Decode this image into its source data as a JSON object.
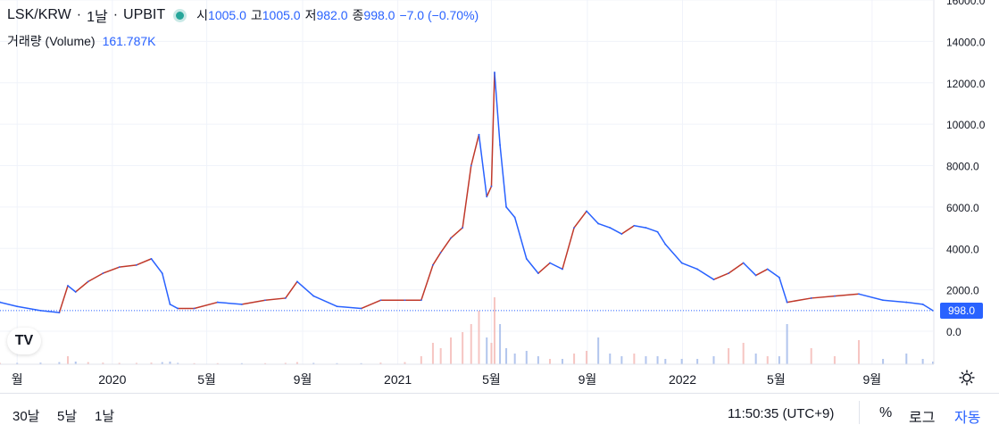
{
  "legend": {
    "symbol": "LSK/KRW",
    "interval": "1날",
    "exchange": "UPBIT",
    "open_label": "시",
    "open": "1005.0",
    "high_label": "고",
    "high": "1005.0",
    "low_label": "저",
    "low": "982.0",
    "close_label": "종",
    "close": "998.0",
    "change": "−7.0 (−0.70%)"
  },
  "volume_legend": {
    "label": "거래량 (Volume)",
    "value": "161.787K"
  },
  "last_price_label": "998.0",
  "colors": {
    "up": "#26a69a",
    "down": "#ef5350",
    "line_up": "#c0392b",
    "line_down": "#2962ff",
    "accent": "#2962ff"
  },
  "icons": {
    "logo": "tradingview-logo-icon",
    "settings": "gear-icon"
  },
  "bottom_bar": {
    "ranges": [
      "30날",
      "5날",
      "1날"
    ],
    "time": "11:50:35 (UTC+9)",
    "percent": "%",
    "log": "로그",
    "auto": "자동"
  },
  "chart_data": {
    "type": "line",
    "title": "",
    "xlabel": "",
    "ylabel": "",
    "y_axis_position": "right",
    "ylim": [
      -300,
      16000
    ],
    "y_ticks": [
      0,
      2000,
      4000,
      6000,
      8000,
      10000,
      12000,
      14000,
      16000
    ],
    "y_tick_labels": [
      "0.0",
      "2000.0",
      "4000.0",
      "6000.0",
      "8000.0",
      "10000.0",
      "12000.0",
      "14000.0",
      "16000.0"
    ],
    "xlim": [
      "2019-08-10",
      "2022-11-18"
    ],
    "x_ticks": [
      {
        "date": "2019-09-01",
        "label": "월"
      },
      {
        "date": "2020-01-01",
        "label": "2020"
      },
      {
        "date": "2020-05-01",
        "label": "5월"
      },
      {
        "date": "2020-09-01",
        "label": "9월"
      },
      {
        "date": "2021-01-01",
        "label": "2021"
      },
      {
        "date": "2021-05-01",
        "label": "5월"
      },
      {
        "date": "2021-09-01",
        "label": "9월"
      },
      {
        "date": "2022-01-01",
        "label": "2022"
      },
      {
        "date": "2022-05-01",
        "label": "5월"
      },
      {
        "date": "2022-09-01",
        "label": "9월"
      }
    ],
    "grid": true,
    "last_value_line": 998,
    "series": [
      {
        "name": "",
        "x": [
          "2019-08-10",
          "2019-09-01",
          "2019-10-01",
          "2019-10-25",
          "2019-11-05",
          "2019-11-15",
          "2019-12-01",
          "2019-12-20",
          "2020-01-10",
          "2020-02-01",
          "2020-02-20",
          "2020-03-05",
          "2020-03-15",
          "2020-03-25",
          "2020-04-15",
          "2020-05-15",
          "2020-06-15",
          "2020-07-15",
          "2020-08-10",
          "2020-08-25",
          "2020-09-15",
          "2020-10-15",
          "2020-11-15",
          "2020-12-10",
          "2021-01-10",
          "2021-01-31",
          "2021-02-15",
          "2021-02-25",
          "2021-03-10",
          "2021-03-25",
          "2021-04-05",
          "2021-04-15",
          "2021-04-25",
          "2021-05-01",
          "2021-05-05",
          "2021-05-12",
          "2021-05-20",
          "2021-05-31",
          "2021-06-15",
          "2021-06-30",
          "2021-07-15",
          "2021-07-31",
          "2021-08-15",
          "2021-08-31",
          "2021-09-15",
          "2021-09-30",
          "2021-10-15",
          "2021-10-31",
          "2021-11-15",
          "2021-11-30",
          "2021-12-10",
          "2021-12-31",
          "2022-01-20",
          "2022-02-10",
          "2022-03-01",
          "2022-03-20",
          "2022-04-05",
          "2022-04-20",
          "2022-05-05",
          "2022-05-15",
          "2022-06-15",
          "2022-07-15",
          "2022-08-15",
          "2022-09-15",
          "2022-10-15",
          "2022-11-05",
          "2022-11-18"
        ],
        "values": [
          1400,
          1200,
          1000,
          900,
          2200,
          1900,
          2400,
          2800,
          3100,
          3200,
          3500,
          2800,
          1300,
          1100,
          1100,
          1400,
          1300,
          1500,
          1600,
          2400,
          1700,
          1200,
          1100,
          1500,
          1500,
          1500,
          3200,
          3800,
          4500,
          5000,
          8000,
          9500,
          6500,
          7000,
          12500,
          9000,
          6000,
          5500,
          3500,
          2800,
          3300,
          3000,
          5000,
          5800,
          5200,
          5000,
          4700,
          5100,
          5000,
          4800,
          4200,
          3300,
          3000,
          2500,
          2800,
          3300,
          2700,
          3000,
          2600,
          1400,
          1600,
          1700,
          1800,
          1500,
          1400,
          1300,
          998
        ]
      }
    ],
    "volume_ylim": [
      0,
      200
    ],
    "volume_values": [
      5,
      5,
      6,
      8,
      30,
      10,
      8,
      6,
      5,
      5,
      6,
      8,
      10,
      5,
      4,
      4,
      4,
      4,
      5,
      8,
      5,
      4,
      4,
      6,
      8,
      30,
      80,
      60,
      100,
      120,
      150,
      200,
      100,
      80,
      250,
      150,
      60,
      40,
      50,
      30,
      20,
      20,
      40,
      50,
      100,
      40,
      30,
      40,
      30,
      30,
      20,
      20,
      20,
      30,
      60,
      80,
      40,
      30,
      30,
      150,
      60,
      30,
      90,
      20,
      40,
      20,
      10
    ]
  }
}
